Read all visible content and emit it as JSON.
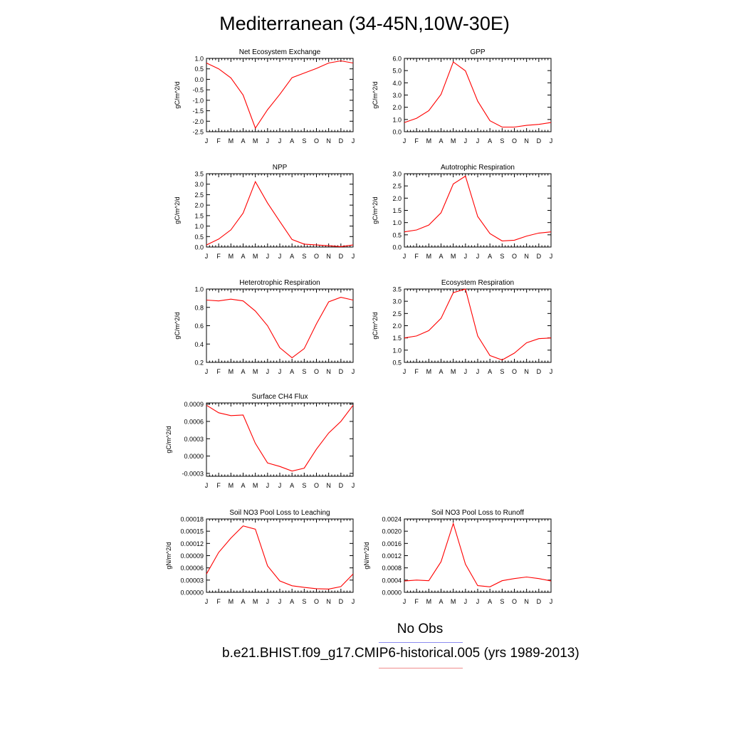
{
  "title": "Mediterranean (34-45N,10W-30E)",
  "legend": {
    "obs_label": "No Obs",
    "obs_color": "#8c8cf0",
    "model_label": "b.e21.BHIST.f09_g17.CMIP6-historical.005 (yrs 1989-2013)",
    "model_color": "#f08c8c"
  },
  "line_color": "#ff0000",
  "chart_data": [
    {
      "type": "line",
      "title": "Net Ecosystem Exchange",
      "ylabel": "gC/m^2/d",
      "categories": [
        "J",
        "F",
        "M",
        "A",
        "M",
        "J",
        "J",
        "A",
        "S",
        "O",
        "N",
        "D",
        "J"
      ],
      "ylim": [
        -2.5,
        1.0
      ],
      "yticks": [
        "1.0",
        "0.5",
        "0.0",
        "-0.5",
        "-1.0",
        "-1.5",
        "-2.0",
        "-2.5"
      ],
      "values": [
        0.78,
        0.5,
        0.07,
        -0.75,
        -2.33,
        -1.45,
        -0.72,
        0.08,
        0.3,
        0.52,
        0.78,
        0.88,
        0.78
      ]
    },
    {
      "type": "line",
      "title": "GPP",
      "ylabel": "gC/m^2/d",
      "categories": [
        "J",
        "F",
        "M",
        "A",
        "M",
        "J",
        "J",
        "A",
        "S",
        "O",
        "N",
        "D",
        "J"
      ],
      "ylim": [
        0.0,
        6.0
      ],
      "yticks": [
        "6.0",
        "5.0",
        "4.0",
        "3.0",
        "2.0",
        "1.0",
        "0.0"
      ],
      "values": [
        0.75,
        1.1,
        1.72,
        3.05,
        5.7,
        4.98,
        2.5,
        0.9,
        0.38,
        0.38,
        0.52,
        0.6,
        0.75
      ]
    },
    {
      "type": "line",
      "title": "NPP",
      "ylabel": "gC/m^2/d",
      "categories": [
        "J",
        "F",
        "M",
        "A",
        "M",
        "J",
        "J",
        "A",
        "S",
        "O",
        "N",
        "D",
        "J"
      ],
      "ylim": [
        0.0,
        3.5
      ],
      "yticks": [
        "3.5",
        "3.0",
        "2.5",
        "2.0",
        "1.5",
        "1.0",
        "0.5",
        "0.0"
      ],
      "values": [
        0.1,
        0.38,
        0.82,
        1.62,
        3.12,
        2.1,
        1.22,
        0.36,
        0.14,
        0.1,
        0.06,
        0.02,
        0.1
      ]
    },
    {
      "type": "line",
      "title": "Autotrophic Respiration",
      "ylabel": "gC/m^2/d",
      "categories": [
        "J",
        "F",
        "M",
        "A",
        "M",
        "J",
        "J",
        "A",
        "S",
        "O",
        "N",
        "D",
        "J"
      ],
      "ylim": [
        0.0,
        3.0
      ],
      "yticks": [
        "3.0",
        "2.5",
        "2.0",
        "1.5",
        "1.0",
        "0.5",
        "0.0"
      ],
      "values": [
        0.62,
        0.7,
        0.9,
        1.4,
        2.58,
        2.9,
        1.25,
        0.55,
        0.25,
        0.28,
        0.45,
        0.57,
        0.62
      ]
    },
    {
      "type": "line",
      "title": "Heterotrophic Respiration",
      "ylabel": "gC/m^2/d",
      "categories": [
        "J",
        "F",
        "M",
        "A",
        "M",
        "J",
        "J",
        "A",
        "S",
        "O",
        "N",
        "D",
        "J"
      ],
      "ylim": [
        0.2,
        1.0
      ],
      "yticks": [
        "1.0",
        "0.8",
        "0.6",
        "0.4",
        "0.2"
      ],
      "values": [
        0.88,
        0.87,
        0.89,
        0.87,
        0.76,
        0.6,
        0.36,
        0.25,
        0.35,
        0.62,
        0.86,
        0.91,
        0.88
      ]
    },
    {
      "type": "line",
      "title": "Ecosystem Respiration",
      "ylabel": "gC/m^2/d",
      "categories": [
        "J",
        "F",
        "M",
        "A",
        "M",
        "J",
        "J",
        "A",
        "S",
        "O",
        "N",
        "D",
        "J"
      ],
      "ylim": [
        0.5,
        3.5
      ],
      "yticks": [
        "3.5",
        "3.0",
        "2.5",
        "2.0",
        "1.5",
        "1.0",
        "0.5"
      ],
      "values": [
        1.5,
        1.58,
        1.8,
        2.3,
        3.35,
        3.5,
        1.58,
        0.78,
        0.6,
        0.88,
        1.3,
        1.47,
        1.5
      ]
    },
    {
      "type": "line",
      "title": "Surface CH4 Flux",
      "ylabel": "gC/m^2/d",
      "categories": [
        "J",
        "F",
        "M",
        "A",
        "M",
        "J",
        "J",
        "A",
        "S",
        "O",
        "N",
        "D",
        "J"
      ],
      "ylim": [
        -0.00035,
        0.00092
      ],
      "yticks": [
        "0.0009",
        "0.0006",
        "0.0003",
        "0.0000",
        "-0.0003"
      ],
      "values": [
        0.00088,
        0.00075,
        0.0007,
        0.00071,
        0.00022,
        -0.00012,
        -0.00018,
        -0.00026,
        -0.00021,
        0.00012,
        0.0004,
        0.0006,
        0.00088
      ]
    },
    {
      "type": "line",
      "title": "Soil NO3 Pool Loss to Leaching",
      "ylabel": "gN/m^2/d",
      "categories": [
        "J",
        "F",
        "M",
        "A",
        "M",
        "J",
        "J",
        "A",
        "S",
        "O",
        "N",
        "D",
        "J"
      ],
      "ylim": [
        0.0,
        0.00018
      ],
      "yticks": [
        "0.00018",
        "0.00015",
        "0.00012",
        "0.00009",
        "0.00006",
        "0.00003",
        "0.00000"
      ],
      "values": [
        4.5e-05,
        9.8e-05,
        0.000133,
        0.000163,
        0.000155,
        6.5e-05,
        2.8e-05,
        1.6e-05,
        1.2e-05,
        9e-06,
        8e-06,
        1.4e-05,
        4.5e-05
      ]
    },
    {
      "type": "line",
      "title": "Soil NO3 Pool Loss to Runoff",
      "ylabel": "gN/m^2/d",
      "categories": [
        "J",
        "F",
        "M",
        "A",
        "M",
        "J",
        "J",
        "A",
        "S",
        "O",
        "N",
        "D",
        "J"
      ],
      "ylim": [
        0.0,
        0.0024
      ],
      "yticks": [
        "0.0024",
        "0.0020",
        "0.0016",
        "0.0012",
        "0.0008",
        "0.0004",
        "0.0000"
      ],
      "values": [
        0.00037,
        0.0004,
        0.00038,
        0.001,
        0.00225,
        0.00092,
        0.00022,
        0.00018,
        0.00038,
        0.00045,
        0.0005,
        0.00045,
        0.00037
      ]
    }
  ]
}
